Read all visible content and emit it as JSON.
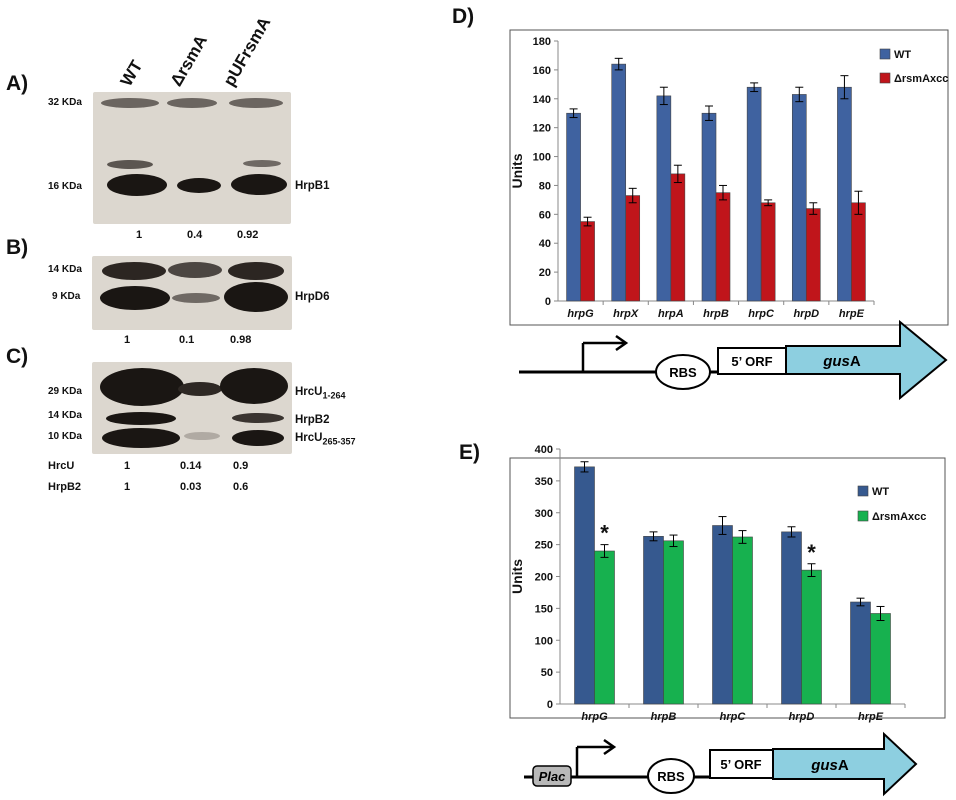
{
  "western": {
    "lanes": [
      "WT",
      "ΔrsmA",
      "pUFrsmA"
    ],
    "panelA": {
      "letter": "A)",
      "markers": [
        "32 KDa",
        "16 KDa"
      ],
      "band_label": "HrpB1",
      "quant": [
        "1",
        "0.4",
        "0.92"
      ]
    },
    "panelB": {
      "letter": "B)",
      "markers": [
        "14 KDa",
        "9 KDa"
      ],
      "band_label": "HrpD6",
      "quant": [
        "1",
        "0.1",
        "0.98"
      ]
    },
    "panelC": {
      "letter": "C)",
      "markers": [
        "29 KDa",
        "14 KDa",
        "10 KDa"
      ],
      "band_labels": {
        "hrcu_top": "HrcU",
        "hrcu_top_sub": "1-264",
        "hrpb2": "HrpB2",
        "hrcu_bottom": "HrcU",
        "hrcu_bottom_sub": "265-357"
      },
      "quant_rows": [
        {
          "label": "HrcU",
          "values": [
            "1",
            "0.14",
            "0.9"
          ]
        },
        {
          "label": "HrpB2",
          "values": [
            "1",
            "0.03",
            "0.6"
          ]
        }
      ]
    }
  },
  "construct_D": {
    "rbs": "RBS",
    "orf": "5’ ORF",
    "gus_italic": "gus",
    "gus_suffix": "A"
  },
  "construct_E": {
    "promoter_italic": "P",
    "promoter_rest": "lac",
    "rbs": "RBS",
    "orf": "5’ ORF",
    "gus_italic": "gus",
    "gus_suffix": "A"
  },
  "chart_data": [
    {
      "panel": "D)",
      "type": "bar",
      "categories": [
        "hrpG",
        "hrpX",
        "hrpA",
        "hrpB",
        "hrpC",
        "hrpD",
        "hrpE"
      ],
      "series": [
        {
          "name": "WT",
          "color": "#3f62a0",
          "values": [
            130,
            164,
            142,
            130,
            148,
            143,
            148
          ],
          "errors": [
            3,
            4,
            6,
            5,
            3,
            5,
            8
          ]
        },
        {
          "name": "ΔrsmAxcc",
          "color": "#c0151b",
          "values": [
            55,
            73,
            88,
            75,
            68,
            64,
            68
          ],
          "errors": [
            3,
            5,
            6,
            5,
            2,
            4,
            8
          ]
        }
      ],
      "ylabel": "Units",
      "ylim": [
        0,
        180
      ],
      "yticks": [
        0,
        20,
        40,
        60,
        80,
        100,
        120,
        140,
        160,
        180
      ],
      "legend": "top-right",
      "significance": []
    },
    {
      "panel": "E)",
      "type": "bar",
      "categories": [
        "hrpG",
        "hrpB",
        "hrpC",
        "hrpD",
        "hrpE"
      ],
      "series": [
        {
          "name": "WT",
          "color": "#36598f",
          "values": [
            372,
            263,
            280,
            270,
            160
          ],
          "errors": [
            8,
            7,
            14,
            8,
            6
          ]
        },
        {
          "name": "ΔrsmAxcc",
          "color": "#17b14f",
          "values": [
            240,
            256,
            262,
            210,
            142
          ],
          "errors": [
            10,
            9,
            10,
            10,
            11
          ]
        }
      ],
      "ylabel": "Units",
      "ylim": [
        0,
        400
      ],
      "yticks": [
        0,
        50,
        100,
        150,
        200,
        250,
        300,
        350,
        400
      ],
      "legend": "top-right",
      "significance": [
        {
          "category": "hrpG",
          "series": "ΔrsmAxcc",
          "mark": "*"
        },
        {
          "category": "hrpD",
          "series": "ΔrsmAxcc",
          "mark": "*"
        }
      ]
    }
  ]
}
